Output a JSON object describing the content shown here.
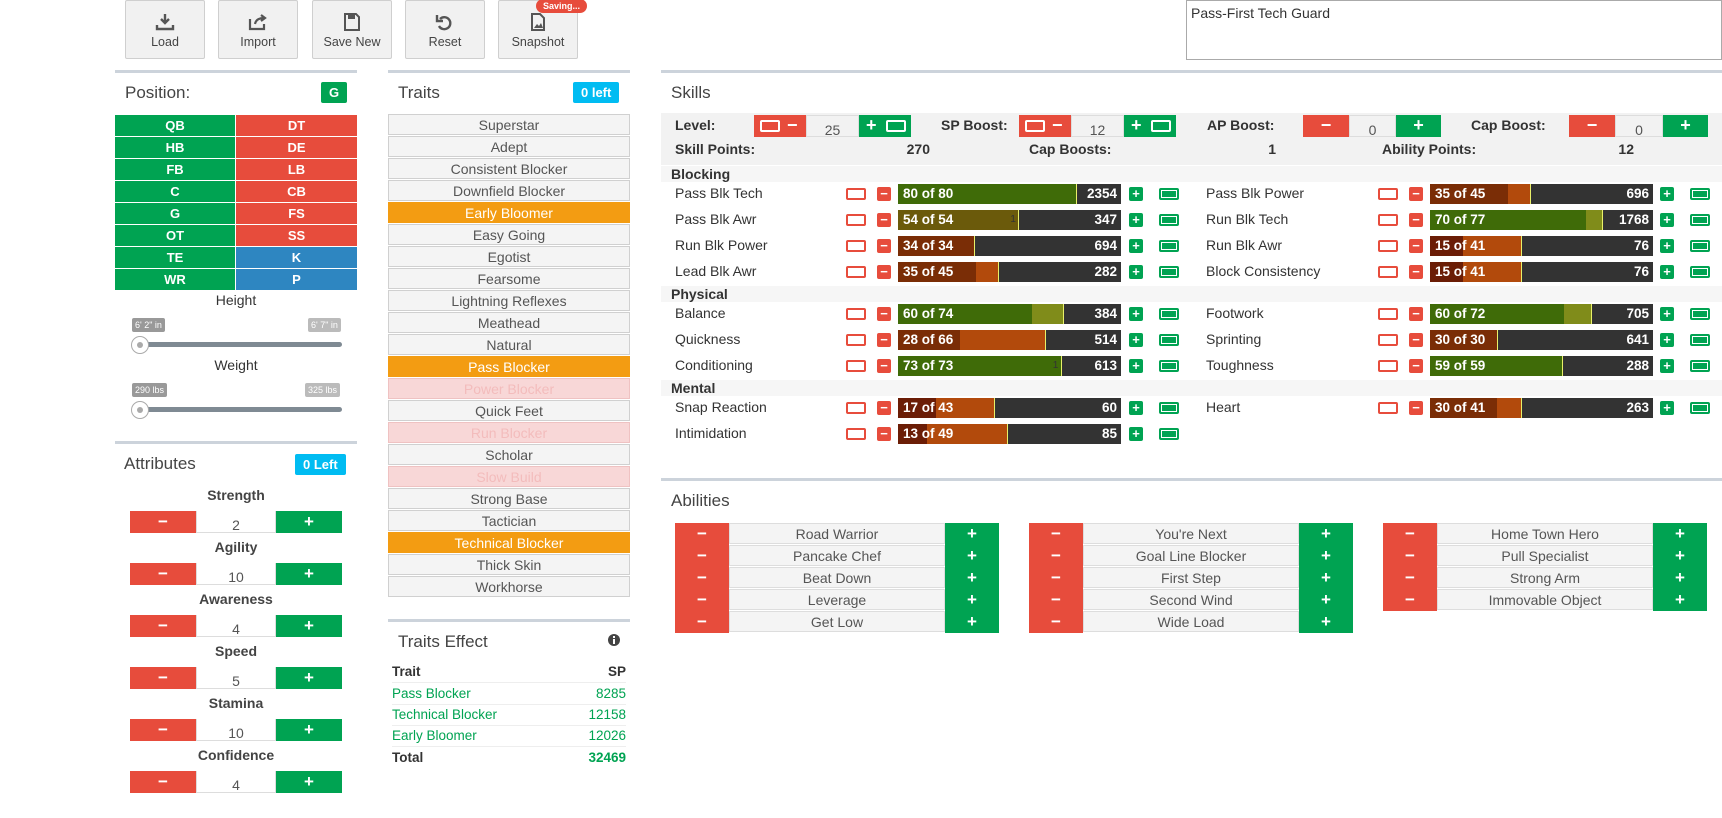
{
  "toolbar": {
    "load": "Load",
    "import": "Import",
    "save_new": "Save New",
    "reset": "Reset",
    "snapshot": "Snapshot",
    "saving_badge": "Saving..."
  },
  "player_name": "Pass-First Tech Guard",
  "position": {
    "title": "Position:",
    "badge": "G",
    "left": [
      "QB",
      "HB",
      "FB",
      "C",
      "G",
      "OT",
      "TE",
      "WR"
    ],
    "right": [
      "DT",
      "DE",
      "LB",
      "CB",
      "FS",
      "SS",
      "K",
      "P"
    ]
  },
  "height": {
    "label": "Height",
    "min": "6' 2\" in",
    "max": "6' 7\" in",
    "level": 0
  },
  "weight": {
    "label": "Weight",
    "min": "290 lbs",
    "max": "325 lbs",
    "level": 0
  },
  "attributes": {
    "title": "Attributes",
    "badge": "0 Left",
    "items": [
      {
        "label": "Strength",
        "value": "2"
      },
      {
        "label": "Agility",
        "value": "10"
      },
      {
        "label": "Awareness",
        "value": "4"
      },
      {
        "label": "Speed",
        "value": "5"
      },
      {
        "label": "Stamina",
        "value": "10"
      },
      {
        "label": "Confidence",
        "value": "4"
      }
    ]
  },
  "traits": {
    "title": "Traits",
    "badge": "0 left",
    "items": [
      {
        "label": "Superstar",
        "state": "normal"
      },
      {
        "label": "Adept",
        "state": "normal"
      },
      {
        "label": "Consistent Blocker",
        "state": "normal"
      },
      {
        "label": "Downfield Blocker",
        "state": "normal"
      },
      {
        "label": "Early Bloomer",
        "state": "selected"
      },
      {
        "label": "Easy Going",
        "state": "normal"
      },
      {
        "label": "Egotist",
        "state": "normal"
      },
      {
        "label": "Fearsome",
        "state": "normal"
      },
      {
        "label": "Lightning Reflexes",
        "state": "normal"
      },
      {
        "label": "Meathead",
        "state": "normal"
      },
      {
        "label": "Natural",
        "state": "normal"
      },
      {
        "label": "Pass Blocker",
        "state": "selected"
      },
      {
        "label": "Power Blocker",
        "state": "disabled"
      },
      {
        "label": "Quick Feet",
        "state": "normal"
      },
      {
        "label": "Run Blocker",
        "state": "disabled"
      },
      {
        "label": "Scholar",
        "state": "normal"
      },
      {
        "label": "Slow Build",
        "state": "disabled"
      },
      {
        "label": "Strong Base",
        "state": "normal"
      },
      {
        "label": "Tactician",
        "state": "normal"
      },
      {
        "label": "Technical Blocker",
        "state": "selected"
      },
      {
        "label": "Thick Skin",
        "state": "normal"
      },
      {
        "label": "Workhorse",
        "state": "normal"
      }
    ]
  },
  "traits_effect": {
    "title": "Traits Effect",
    "col_trait": "Trait",
    "col_sp": "SP",
    "rows": [
      {
        "trait": "Pass Blocker",
        "sp": "8285"
      },
      {
        "trait": "Technical Blocker",
        "sp": "12158"
      },
      {
        "trait": "Early Bloomer",
        "sp": "12026"
      }
    ],
    "total_label": "Total",
    "total_value": "32469"
  },
  "skills": {
    "title": "Skills",
    "level_label": "Level:",
    "level_value": "25",
    "sp_boost_label": "SP Boost:",
    "sp_boost_value": "12",
    "ap_boost_label": "AP Boost:",
    "ap_boost_value": "0",
    "cap_boost_label": "Cap Boost:",
    "cap_boost_value": "0",
    "skill_points_label": "Skill Points:",
    "skill_points_value": "270",
    "cap_boosts_label": "Cap Boosts:",
    "cap_boosts_value": "1",
    "ability_points_label": "Ability Points:",
    "ability_points_value": "12",
    "groups": [
      {
        "name": "Blocking",
        "rows": [
          {
            "left": {
              "name": "Pass Blk Tech",
              "label": "80 of 80",
              "cost": "2354",
              "cur": 80,
              "cap": 80,
              "tick": null
            },
            "right": {
              "name": "Pass Blk Power",
              "label": "35 of 45",
              "cost": "696",
              "cur": 35,
              "cap": 45,
              "tick": null
            }
          },
          {
            "left": {
              "name": "Pass Blk Awr",
              "label": "54 of 54",
              "cost": "347",
              "cur": 54,
              "cap": 54,
              "tick": "1"
            },
            "right": {
              "name": "Run Blk Tech",
              "label": "70 of 77",
              "cost": "1768",
              "cur": 70,
              "cap": 77,
              "tick": null
            }
          },
          {
            "left": {
              "name": "Run Blk Power",
              "label": "34 of 34",
              "cost": "694",
              "cur": 34,
              "cap": 34,
              "tick": null
            },
            "right": {
              "name": "Run Blk Awr",
              "label": "15 of 41",
              "cost": "76",
              "cur": 15,
              "cap": 41,
              "tick": null
            }
          },
          {
            "left": {
              "name": "Lead Blk Awr",
              "label": "35 of 45",
              "cost": "282",
              "cur": 35,
              "cap": 45,
              "tick": null
            },
            "right": {
              "name": "Block Consistency",
              "label": "15 of 41",
              "cost": "76",
              "cur": 15,
              "cap": 41,
              "tick": null
            }
          }
        ]
      },
      {
        "name": "Physical",
        "rows": [
          {
            "left": {
              "name": "Balance",
              "label": "60 of 74",
              "cost": "384",
              "cur": 60,
              "cap": 74,
              "tick": null
            },
            "right": {
              "name": "Footwork",
              "label": "60 of 72",
              "cost": "705",
              "cur": 60,
              "cap": 72,
              "tick": null
            }
          },
          {
            "left": {
              "name": "Quickness",
              "label": "28 of 66",
              "cost": "514",
              "cur": 28,
              "cap": 66,
              "tick": null
            },
            "right": {
              "name": "Sprinting",
              "label": "30 of 30",
              "cost": "641",
              "cur": 30,
              "cap": 30,
              "tick": null
            }
          },
          {
            "left": {
              "name": "Conditioning",
              "label": "73 of 73",
              "cost": "613",
              "cur": 73,
              "cap": 73,
              "tick": "1"
            },
            "right": {
              "name": "Toughness",
              "label": "59 of 59",
              "cost": "288",
              "cur": 59,
              "cap": 59,
              "tick": null
            }
          }
        ]
      },
      {
        "name": "Mental",
        "rows": [
          {
            "left": {
              "name": "Snap Reaction",
              "label": "17 of 43",
              "cost": "60",
              "cur": 17,
              "cap": 43,
              "tick": null
            },
            "right": {
              "name": "Heart",
              "label": "30 of 41",
              "cost": "263",
              "cur": 30,
              "cap": 41,
              "tick": null
            }
          },
          {
            "left": {
              "name": "Intimidation",
              "label": "13 of 49",
              "cost": "85",
              "cur": 13,
              "cap": 49,
              "tick": null
            },
            "right": null
          }
        ]
      }
    ]
  },
  "abilities": {
    "title": "Abilities",
    "columns": [
      [
        "Road Warrior",
        "Pancake Chef",
        "Beat Down",
        "Leverage",
        "Get Low"
      ],
      [
        "You're Next",
        "Goal Line Blocker",
        "First Step",
        "Second Wind",
        "Wide Load"
      ],
      [
        "Home Town Hero",
        "Pull Specialist",
        "Strong Arm",
        "Immovable Object"
      ]
    ]
  },
  "colors": {
    "green": "#00a352",
    "red": "#e74c3c",
    "orange": "#f39c12",
    "blue": "#2e86c1",
    "cyan": "#00bcf2"
  }
}
